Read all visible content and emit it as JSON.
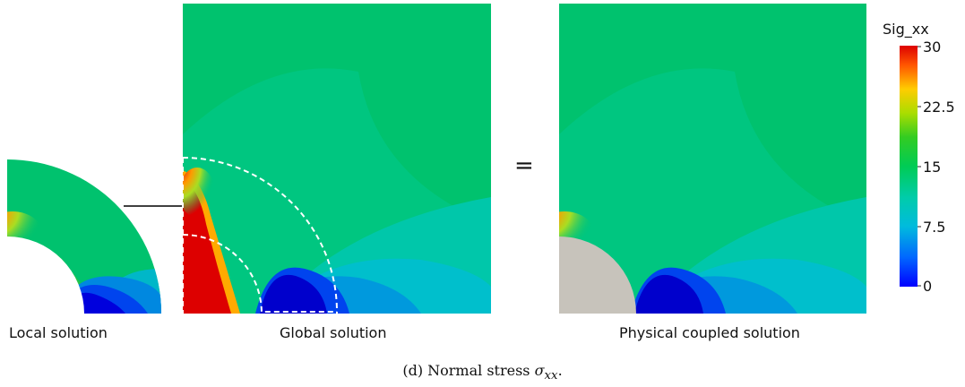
{
  "panels": {
    "local_label": "Local solution",
    "global_label": "Global solution",
    "coupled_label": "Physical coupled solution"
  },
  "operator": "=",
  "colorbar": {
    "title": "Sig_xx",
    "ticks": [
      "30",
      "22.5",
      "15",
      "7.5",
      "0"
    ],
    "min": 0,
    "max": 30,
    "colormap": [
      "#0000ff",
      "#0066ff",
      "#00cccc",
      "#00cc66",
      "#22cc22",
      "#aadd00",
      "#ffcc00",
      "#ff6600",
      "#dd0000"
    ]
  },
  "caption": {
    "prefix": "(d) Normal stress",
    "symbol": "σ",
    "subscript": "xx",
    "suffix": "."
  },
  "colors": {
    "field_background": "#00c26e",
    "hole_fill": "#c7c3bb",
    "interface_line": "#ffffff",
    "arrow": "#000000"
  }
}
